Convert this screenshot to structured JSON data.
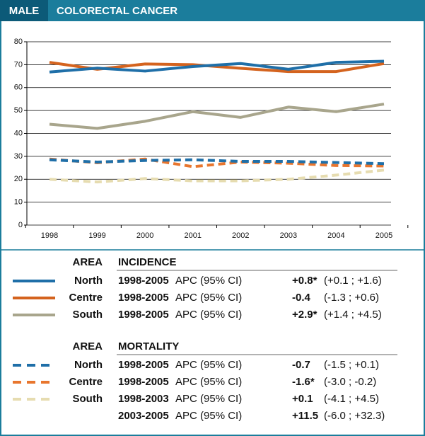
{
  "chart_data": {
    "type": "line",
    "header": {
      "tag": "MALE",
      "title": "COLORECTAL CANCER"
    },
    "categories": [
      "1998",
      "1999",
      "2000",
      "2001",
      "2002",
      "2003",
      "2004",
      "2005"
    ],
    "ylim": [
      0,
      80
    ],
    "yticks": [
      0,
      10,
      20,
      30,
      40,
      50,
      60,
      70,
      80
    ],
    "grid": true,
    "series": [
      {
        "name": "North",
        "color": "#1f6fa8",
        "dashed": false,
        "values": [
          66.8,
          68.5,
          67.2,
          69.2,
          70.5,
          68,
          71,
          71.5
        ]
      },
      {
        "name": "Centre",
        "color": "#d4631e",
        "dashed": false,
        "values": [
          71,
          68,
          70.3,
          70,
          68.4,
          67,
          67,
          70.5
        ]
      },
      {
        "name": "South",
        "color": "#a8a58c",
        "dashed": false,
        "values": [
          44,
          42.2,
          45.3,
          49.5,
          47,
          51.5,
          49.5,
          52.8
        ]
      },
      {
        "name": "North",
        "color": "#1f6fa8",
        "dashed": true,
        "values": [
          28.5,
          27.5,
          28.2,
          28.5,
          27.8,
          27.8,
          27.3,
          26.8
        ]
      },
      {
        "name": "Centre",
        "color": "#e8762e",
        "dashed": true,
        "values": [
          28.8,
          27.2,
          28.8,
          25.5,
          27.5,
          27,
          26,
          25.8
        ]
      },
      {
        "name": "South",
        "color": "#e6dcb0",
        "dashed": true,
        "values": [
          20,
          18.8,
          20.3,
          19.3,
          19.3,
          20,
          21.8,
          24
        ]
      }
    ],
    "legend": [
      {
        "area_header": "AREA",
        "measure_header": "INCIDENCE",
        "rows": [
          {
            "area": "North",
            "entries": [
              {
                "period": "1998-2005",
                "apc": "APC (95% CI)",
                "estimate": "+0.8*",
                "ci": "(+0.1 ; +1.6)"
              }
            ]
          },
          {
            "area": "Centre",
            "entries": [
              {
                "period": "1998-2005",
                "apc": "APC (95% CI)",
                "estimate": "-0.4",
                "ci": "(-1.3 ; +0.6)"
              }
            ]
          },
          {
            "area": "South",
            "entries": [
              {
                "period": "1998-2005",
                "apc": "APC (95% CI)",
                "estimate": "+2.9*",
                "ci": "(+1.4 ; +4.5)"
              }
            ]
          }
        ]
      },
      {
        "area_header": "AREA",
        "measure_header": "MORTALITY",
        "rows": [
          {
            "area": "North",
            "entries": [
              {
                "period": "1998-2005",
                "apc": "APC (95% CI)",
                "estimate": "-0.7",
                "ci": "(-1.5 ; +0.1)"
              }
            ]
          },
          {
            "area": "Centre",
            "entries": [
              {
                "period": "1998-2005",
                "apc": "APC (95% CI)",
                "estimate": "-1.6*",
                "ci": "(-3.0 ; -0.2)"
              }
            ]
          },
          {
            "area": "South",
            "entries": [
              {
                "period": "1998-2003",
                "apc": "APC (95% CI)",
                "estimate": "+0.1",
                "ci": "(-4.1 ; +4.5)"
              },
              {
                "period": "2003-2005",
                "apc": "APC (95% CI)",
                "estimate": "+11.5",
                "ci": "(-6.0 ; +32.3)"
              }
            ]
          }
        ]
      }
    ]
  }
}
